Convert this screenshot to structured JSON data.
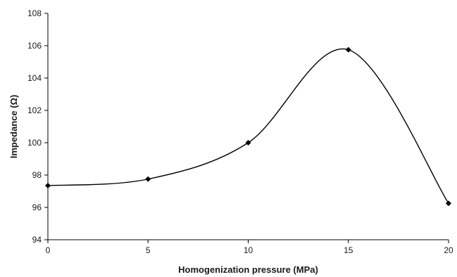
{
  "chart_data": {
    "type": "line",
    "title": "",
    "xlabel": "Homogenization pressure (MPa)",
    "ylabel": "Impedance (Ω)",
    "xlim": [
      0,
      20
    ],
    "ylim": [
      94,
      108
    ],
    "x_ticks": [
      0,
      5,
      10,
      15,
      20
    ],
    "y_ticks": [
      94,
      96,
      98,
      100,
      102,
      104,
      106,
      108
    ],
    "grid": false,
    "legend": "none",
    "smooth": true,
    "series": [
      {
        "x": [
          0,
          5,
          10,
          15,
          20
        ],
        "y": [
          97.35,
          97.75,
          100.0,
          105.75,
          96.25
        ]
      }
    ],
    "colors": {
      "line": "#000000",
      "marker": "#000000"
    }
  }
}
